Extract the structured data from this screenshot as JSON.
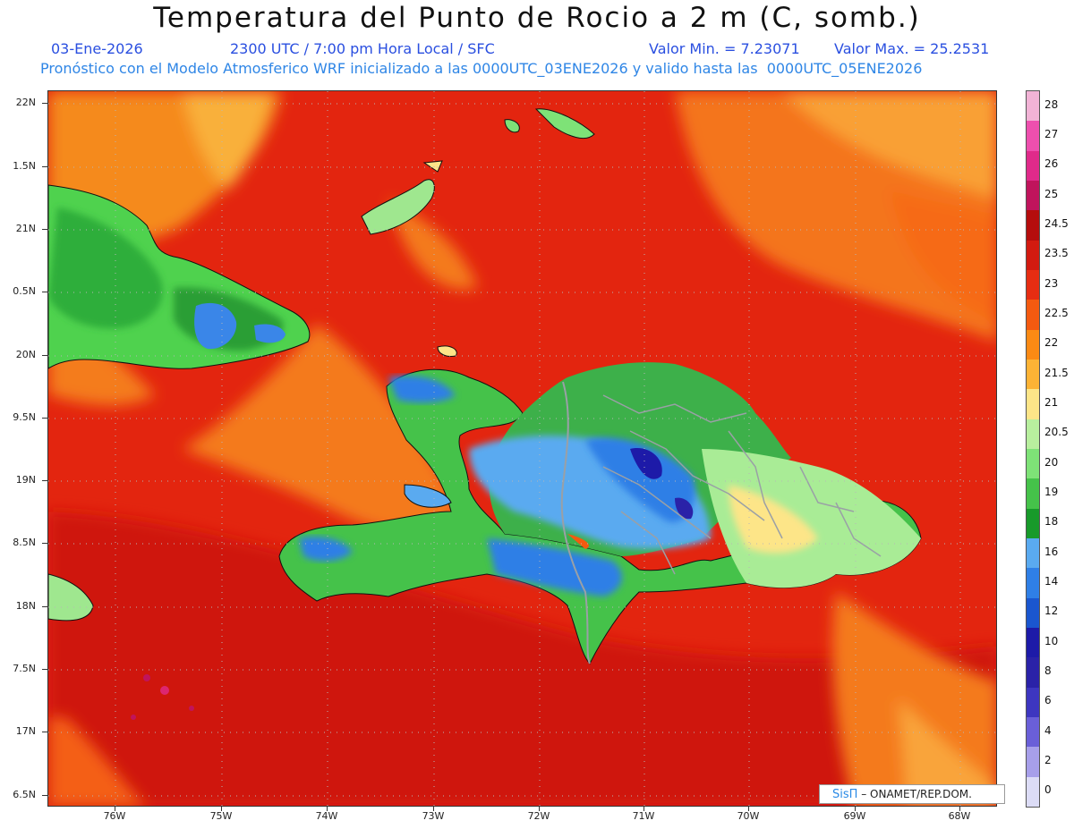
{
  "header": {
    "title": "Temperatura del Punto de Rocio a 2 m (C, somb.)",
    "date": "03-Ene-2026",
    "time_info": "2300 UTC / 7:00 pm Hora Local / SFC",
    "min_label": "Valor Min. = 7.23071",
    "max_label": "Valor Max. = 25.2531",
    "model_info": "Pronóstico con el Modelo Atmosferico WRF inicializado a las 0000UTC_03ENE2026 y valido hasta las  0000UTC_05ENE2026"
  },
  "axes": {
    "lat_labels": [
      "22N",
      "1.5N",
      "21N",
      "0.5N",
      "20N",
      "9.5N",
      "19N",
      "8.5N",
      "18N",
      "7.5N",
      "17N",
      "6.5N"
    ],
    "lon_labels": [
      "76W",
      "75W",
      "74W",
      "73W",
      "72W",
      "71W",
      "70W",
      "69W",
      "68W"
    ]
  },
  "legend": {
    "labels": [
      "28",
      "27",
      "26",
      "25",
      "24.5",
      "23.5",
      "23",
      "22.5",
      "22",
      "21.5",
      "21",
      "20.5",
      "20",
      "19",
      "18",
      "16",
      "14",
      "12",
      "10",
      "8",
      "6",
      "4",
      "2",
      "0"
    ],
    "colors": [
      "#f2b3d6",
      "#ee4fae",
      "#e02a8a",
      "#c0145c",
      "#b50d0d",
      "#d21a10",
      "#e62d12",
      "#f45a10",
      "#fb8a14",
      "#fdb335",
      "#fde588",
      "#b8ef9e",
      "#7ee277",
      "#45c24a",
      "#189a2a",
      "#5aaaf0",
      "#2f7fe6",
      "#1a56cf",
      "#1d1aa8",
      "#2a22a8",
      "#3d36c0",
      "#6a5fd8",
      "#a79fea",
      "#dcdcf6"
    ]
  },
  "credit": {
    "brand": "SisΠ",
    "text": " – ONAMET/REP.DOM."
  }
}
